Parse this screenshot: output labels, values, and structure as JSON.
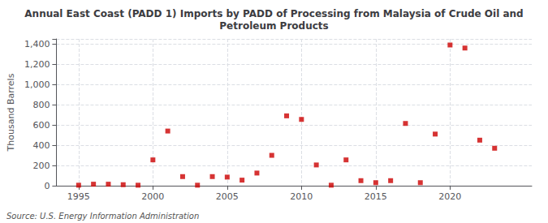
{
  "chart_data": {
    "type": "scatter",
    "title": "Annual East Coast (PADD 1) Imports by PADD of Processing from Malaysia of Crude Oil and\nPetroleum Products",
    "ylabel": "Thousand Barrels",
    "source": "Source: U.S. Energy Information Administration",
    "x": [
      1995,
      1996,
      1997,
      1998,
      1999,
      2000,
      2001,
      2002,
      2003,
      2004,
      2005,
      2006,
      2007,
      2008,
      2009,
      2010,
      2011,
      2012,
      2013,
      2014,
      2015,
      2016,
      2017,
      2018,
      2019,
      2020,
      2021,
      2022,
      2023
    ],
    "values": [
      5,
      15,
      15,
      10,
      5,
      255,
      540,
      90,
      5,
      90,
      85,
      55,
      125,
      300,
      690,
      655,
      205,
      5,
      255,
      50,
      30,
      50,
      615,
      30,
      510,
      1390,
      1360,
      450,
      370
    ],
    "color": "#cc0000",
    "marker": "square",
    "xlim": [
      1993.5,
      2025.5
    ],
    "xticks": [
      1995,
      2000,
      2005,
      2010,
      2015,
      2020
    ],
    "ylim": [
      0,
      1450
    ],
    "yticks": [
      0,
      200,
      400,
      600,
      800,
      {
        "value": 1000,
        "label": "1,000"
      },
      {
        "value": 1200,
        "label": "1,200"
      },
      {
        "value": 1400,
        "label": "1,400"
      }
    ],
    "grid": true
  }
}
